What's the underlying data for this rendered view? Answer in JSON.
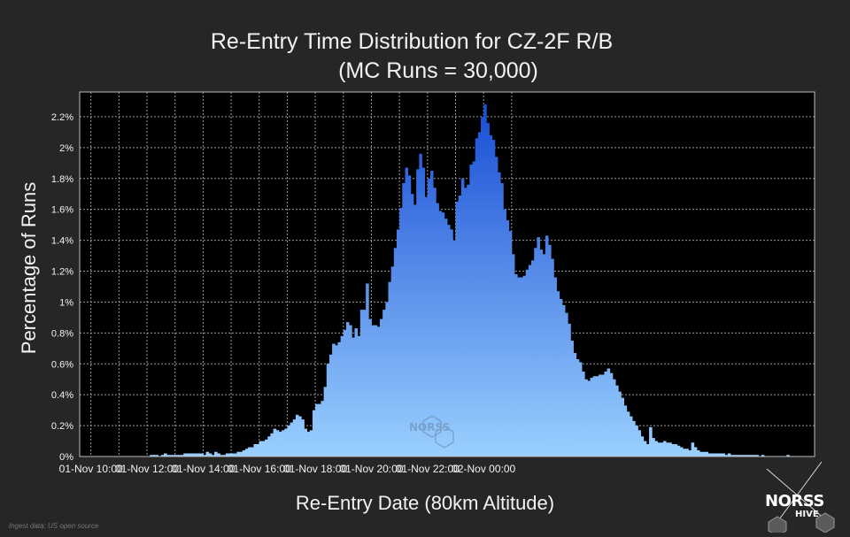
{
  "chart_data": {
    "type": "bar",
    "title_line1": "Re-Entry Time Distribution for CZ-2F R/B",
    "title_line2": "(MC Runs = 30,000)",
    "xlabel": "Re-Entry Date (80km Altitude)",
    "ylabel": "Percentage of Runs",
    "ylim": [
      0,
      2.36
    ],
    "yticks": [
      0,
      0.2,
      0.4,
      0.6,
      0.8,
      1.0,
      1.2,
      1.4,
      1.6,
      1.8,
      2.0,
      2.2
    ],
    "ytick_labels": [
      "0%",
      "0.2%",
      "0.4%",
      "0.6%",
      "0.8%",
      "1%",
      "1.2%",
      "1.4%",
      "1.6%",
      "1.8%",
      "2%",
      "2.2%"
    ],
    "xlim_hours": [
      -0.4,
      25.8
    ],
    "xticks_hours": [
      0,
      2,
      4,
      6,
      8,
      10,
      12,
      14
    ],
    "xtick_labels": [
      "01-Nov 10:00",
      "01-Nov 12:00",
      "01-Nov 14:00",
      "01-Nov 16:00",
      "01-Nov 18:00",
      "01-Nov 20:00",
      "01-Nov 22:00",
      "02-Nov 00:00"
    ],
    "grid": true,
    "bin_width_hours": 0.1,
    "bins_start_hour": 0,
    "values": [
      0.0,
      0.0,
      0.0,
      0.0,
      0.0,
      0.0,
      0.0,
      0.0,
      0.0,
      0.0,
      0.0,
      0.0,
      0.0,
      0.0,
      0.0,
      0.0,
      0.0,
      0.0,
      0.0,
      0.0,
      0.0,
      0.01,
      0.01,
      0.01,
      0.0,
      0.01,
      0.02,
      0.01,
      0.01,
      0.01,
      0.01,
      0.01,
      0.01,
      0.02,
      0.02,
      0.02,
      0.02,
      0.02,
      0.02,
      0.02,
      0.01,
      0.03,
      0.02,
      0.01,
      0.03,
      0.02,
      0.01,
      0.01,
      0.02,
      0.02,
      0.02,
      0.02,
      0.03,
      0.03,
      0.04,
      0.05,
      0.06,
      0.06,
      0.08,
      0.08,
      0.1,
      0.1,
      0.11,
      0.13,
      0.15,
      0.18,
      0.17,
      0.16,
      0.17,
      0.18,
      0.2,
      0.22,
      0.24,
      0.27,
      0.26,
      0.24,
      0.18,
      0.16,
      0.17,
      0.3,
      0.34,
      0.34,
      0.36,
      0.45,
      0.6,
      0.66,
      0.73,
      0.72,
      0.74,
      0.78,
      0.82,
      0.87,
      0.85,
      0.77,
      0.83,
      0.78,
      0.95,
      0.95,
      1.12,
      0.89,
      0.85,
      0.85,
      0.84,
      0.89,
      0.95,
      1.0,
      1.13,
      1.23,
      1.35,
      1.47,
      1.61,
      1.77,
      1.87,
      1.82,
      1.7,
      1.63,
      1.86,
      1.96,
      1.87,
      1.68,
      1.8,
      1.85,
      1.74,
      1.64,
      1.59,
      1.58,
      1.54,
      1.5,
      1.47,
      1.4,
      1.65,
      1.69,
      1.8,
      1.74,
      1.76,
      1.89,
      1.91,
      2.06,
      2.1,
      2.2,
      2.28,
      2.16,
      2.08,
      2.05,
      1.94,
      1.84,
      1.77,
      1.6,
      1.53,
      1.46,
      1.31,
      1.18,
      1.16,
      1.16,
      1.17,
      1.21,
      1.24,
      1.27,
      1.35,
      1.42,
      1.34,
      1.31,
      1.43,
      1.37,
      1.28,
      1.16,
      1.07,
      1.02,
      0.98,
      0.93,
      0.86,
      0.75,
      0.67,
      0.63,
      0.61,
      0.55,
      0.5,
      0.49,
      0.51,
      0.52,
      0.52,
      0.53,
      0.53,
      0.55,
      0.57,
      0.54,
      0.5,
      0.46,
      0.42,
      0.38,
      0.33,
      0.29,
      0.26,
      0.23,
      0.2,
      0.17,
      0.13,
      0.1,
      0.08,
      0.19,
      0.12,
      0.1,
      0.09,
      0.09,
      0.1,
      0.09,
      0.09,
      0.08,
      0.08,
      0.07,
      0.06,
      0.05,
      0.05,
      0.04,
      0.09,
      0.06,
      0.04,
      0.03,
      0.03,
      0.03,
      0.02,
      0.02,
      0.02,
      0.02,
      0.02,
      0.02,
      0.01,
      0.02,
      0.01,
      0.01,
      0.01,
      0.01,
      0.01,
      0.01,
      0.01,
      0.01,
      0.01,
      0.01,
      0.0,
      0.01,
      0.0,
      0.0,
      0.0,
      0.0,
      0.0,
      0.0,
      0.0,
      0.0,
      0.01,
      0.0,
      0.0,
      0.0,
      0.0,
      0.0,
      0.0,
      0.0,
      0.0,
      0.0
    ],
    "colors": {
      "bar_top": "#1a4fd6",
      "bar_bottom": "#9ad0ff",
      "background": "#262626",
      "plot_bg": "#000000",
      "grid": "#9a9a9a",
      "text": "#f2f2f2"
    }
  },
  "credit": "Ingest data: US open source",
  "logo": {
    "text": "NORSS",
    "sub": "HIVE",
    "watermark": "NORSS"
  }
}
